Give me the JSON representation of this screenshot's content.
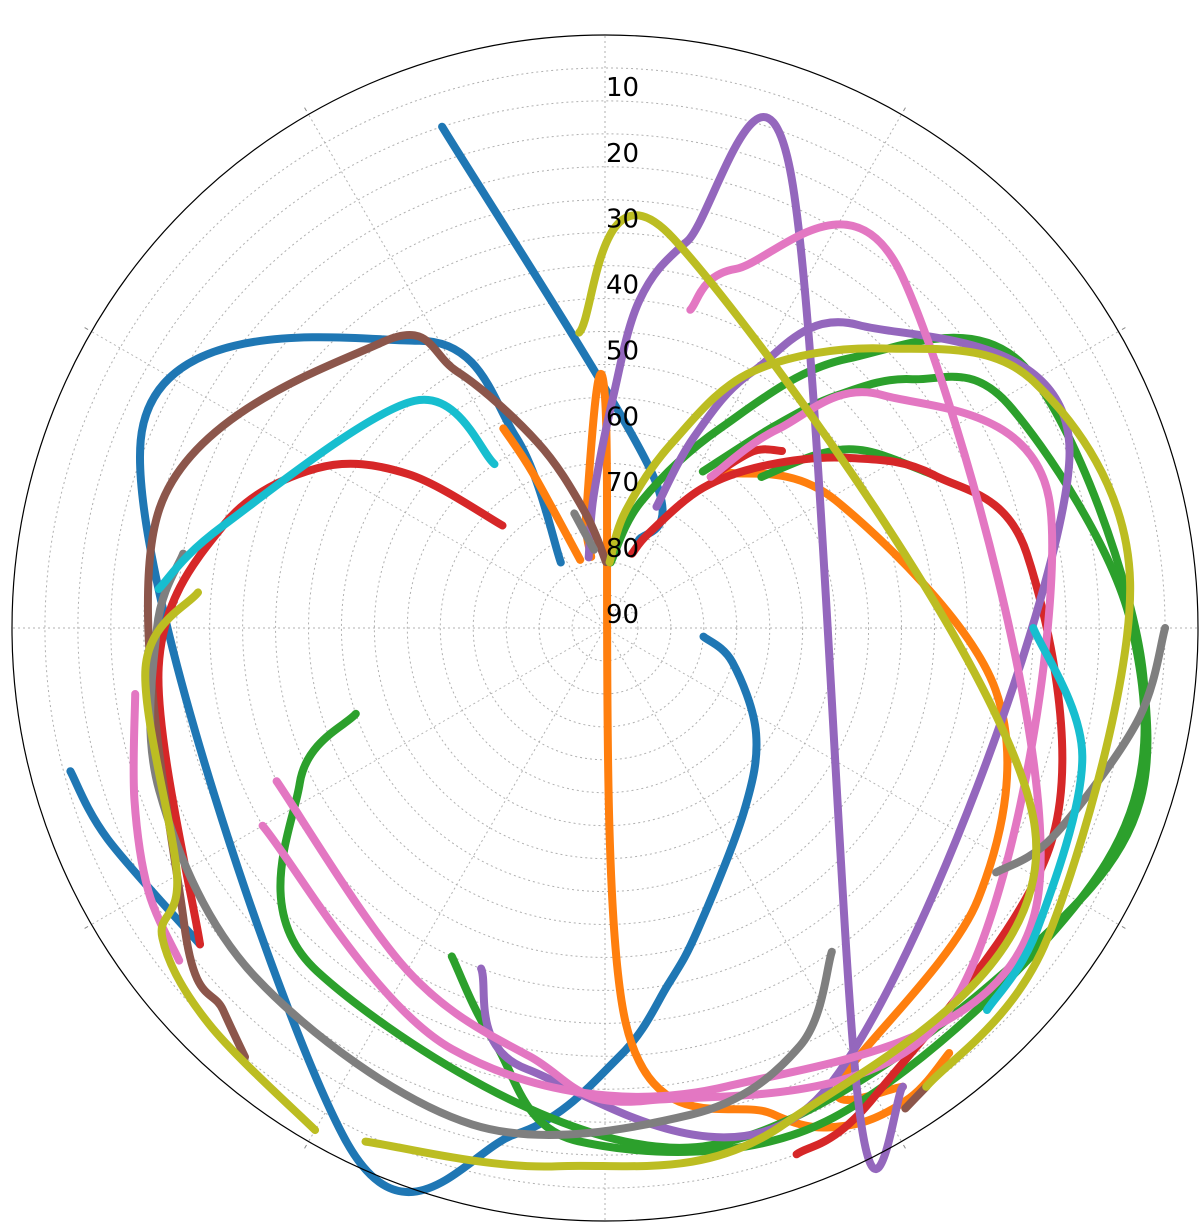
{
  "chart_data": {
    "type": "scatter",
    "projection": "polar",
    "title": "",
    "r_tick_labels": [
      "10",
      "20",
      "30",
      "40",
      "50",
      "60",
      "70",
      "80",
      "90"
    ],
    "r_range": [
      0,
      90
    ],
    "r_axis": "zenith distance = 90 - value",
    "grid": true,
    "grid_style": "dotted",
    "angular_gridlines_deg": [
      0,
      30,
      60,
      90,
      120,
      150,
      180,
      210,
      240,
      270,
      300,
      330
    ],
    "legend": "none",
    "series": [
      {
        "color": "#1f77b4",
        "points": [
          [
            10,
            342
          ],
          [
            65,
            16
          ],
          [
            76,
            21
          ]
        ]
      },
      {
        "color": "#1f77b4",
        "points": [
          [
            78,
            326
          ],
          [
            58,
            335
          ],
          [
            38,
            327
          ],
          [
            14,
            292
          ],
          [
            3,
            207
          ],
          [
            12,
            190
          ],
          [
            25,
            178
          ],
          [
            35,
            170
          ],
          [
            42,
            163
          ],
          [
            55,
            143
          ],
          [
            62,
            125
          ],
          [
            70,
            105
          ],
          [
            75,
            95
          ]
        ]
      },
      {
        "color": "#1f77b4",
        "points": [
          [
            12,
            232
          ],
          [
            8,
            247
          ],
          [
            6,
            255
          ]
        ]
      },
      {
        "color": "#ff7f0e",
        "points": [
          [
            79,
            349
          ],
          [
            72,
            351
          ],
          [
            55,
            360
          ],
          [
            30,
            177
          ],
          [
            12,
            161
          ],
          [
            6,
            154
          ],
          [
            5,
            147
          ],
          [
            7,
            141
          ]
        ]
      },
      {
        "color": "#ff7f0e",
        "points": [
          [
            79,
            340
          ],
          [
            64,
            335
          ],
          [
            56,
            333
          ]
        ]
      },
      {
        "color": "#ff7f0e",
        "points": [
          [
            60,
            38
          ],
          [
            50,
            61
          ],
          [
            30,
            99
          ],
          [
            20,
            126
          ],
          [
            12,
            153
          ],
          [
            7,
            147
          ]
        ]
      },
      {
        "color": "#2ca02c",
        "points": [
          [
            80,
            5
          ],
          [
            70,
            16
          ],
          [
            55,
            30
          ],
          [
            35,
            42
          ],
          [
            15,
            58
          ],
          [
            8,
            95
          ],
          [
            7,
            120
          ],
          [
            10,
            170
          ],
          [
            22,
            220
          ],
          [
            38,
            243
          ],
          [
            50,
            251
          ]
        ]
      },
      {
        "color": "#2ca02c",
        "points": [
          [
            62,
            32
          ],
          [
            50,
            40
          ],
          [
            40,
            45
          ],
          [
            30,
            51
          ],
          [
            20,
            61
          ],
          [
            10,
            90
          ],
          [
            6,
            115
          ],
          [
            8,
            155
          ],
          [
            12,
            183
          ],
          [
            25,
            195
          ],
          [
            35,
            205
          ]
        ]
      },
      {
        "color": "#2ca02c",
        "points": [
          [
            57,
            46
          ],
          [
            48,
            51
          ],
          [
            42,
            56
          ],
          [
            35,
            65
          ]
        ]
      },
      {
        "color": "#d62728",
        "points": [
          [
            78,
            20
          ],
          [
            74,
            25
          ],
          [
            64,
            35
          ],
          [
            55,
            45
          ],
          [
            45,
            55
          ],
          [
            35,
            65
          ],
          [
            25,
            80
          ],
          [
            15,
            115
          ],
          [
            8,
            150
          ],
          [
            5,
            160
          ]
        ]
      },
      {
        "color": "#d62728",
        "points": [
          [
            68,
            315
          ],
          [
            52,
            308
          ],
          [
            40,
            299
          ],
          [
            30,
            285
          ],
          [
            22,
            265
          ],
          [
            12,
            232
          ]
        ]
      },
      {
        "color": "#d62728",
        "points": [
          [
            62,
            35
          ],
          [
            55,
            40
          ],
          [
            52,
            45
          ]
        ]
      },
      {
        "color": "#9467bd",
        "points": [
          [
            79,
            347
          ],
          [
            70,
            355
          ],
          [
            55,
            2
          ],
          [
            40,
            6
          ],
          [
            30,
            12
          ],
          [
            15,
            22
          ],
          [
            8,
            152
          ],
          [
            7,
            147
          ]
        ]
      },
      {
        "color": "#9467bd",
        "points": [
          [
            70,
            23
          ],
          [
            58,
            25
          ],
          [
            45,
            30
          ],
          [
            30,
            40
          ],
          [
            15,
            70
          ],
          [
            12,
            155
          ],
          [
            22,
            190
          ],
          [
            35,
            200
          ]
        ]
      },
      {
        "color": "#8c564b",
        "points": [
          [
            80,
            1
          ],
          [
            72,
            350
          ],
          [
            60,
            340
          ],
          [
            45,
            330
          ],
          [
            35,
            322
          ],
          [
            20,
            285
          ],
          [
            12,
            235
          ],
          [
            8,
            225
          ],
          [
            5,
            220
          ]
        ]
      },
      {
        "color": "#8c564b",
        "points": [
          [
            5,
            145
          ],
          [
            4,
            148
          ]
        ]
      },
      {
        "color": "#e377c2",
        "points": [
          [
            62,
            35
          ],
          [
            50,
            41
          ],
          [
            35,
            50
          ],
          [
            20,
            75
          ],
          [
            12,
            138
          ],
          [
            18,
            175
          ],
          [
            24,
            190
          ],
          [
            30,
            210
          ],
          [
            35,
            245
          ]
        ]
      },
      {
        "color": "#e377c2",
        "points": [
          [
            40,
            15
          ],
          [
            32,
            20
          ],
          [
            20,
            40
          ],
          [
            12,
            123
          ],
          [
            18,
            165
          ],
          [
            22,
            200
          ],
          [
            30,
            240
          ]
        ]
      },
      {
        "color": "#e377c2",
        "points": [
          [
            18,
            262
          ],
          [
            14,
            250
          ],
          [
            10,
            240
          ],
          [
            8,
            232
          ]
        ]
      },
      {
        "color": "#7f7f7f",
        "points": [
          [
            78,
            352
          ],
          [
            72,
            345
          ]
        ]
      },
      {
        "color": "#7f7f7f",
        "points": [
          [
            25,
            280
          ],
          [
            22,
            270
          ],
          [
            18,
            250
          ],
          [
            15,
            225
          ],
          [
            12,
            195
          ],
          [
            15,
            170
          ],
          [
            20,
            155
          ],
          [
            30,
            145
          ]
        ]
      },
      {
        "color": "#7f7f7f",
        "points": [
          [
            5,
            90
          ],
          [
            8,
            100
          ],
          [
            15,
            115
          ],
          [
            20,
            122
          ]
        ]
      },
      {
        "color": "#bcbd22",
        "points": [
          [
            80,
            4
          ],
          [
            72,
            10
          ],
          [
            60,
            20
          ],
          [
            45,
            30
          ],
          [
            30,
            45
          ],
          [
            15,
            60
          ],
          [
            10,
            85
          ],
          [
            8,
            125
          ],
          [
            5,
            145
          ]
        ]
      },
      {
        "color": "#bcbd22",
        "points": [
          [
            28,
            275
          ],
          [
            20,
            265
          ],
          [
            15,
            240
          ],
          [
            8,
            235
          ],
          [
            5,
            225
          ],
          [
            2,
            210
          ]
        ]
      },
      {
        "color": "#bcbd22",
        "points": [
          [
            45,
            355
          ],
          [
            30,
            10
          ],
          [
            18,
            115
          ],
          [
            10,
            160
          ],
          [
            8,
            185
          ],
          [
            4,
            205
          ]
        ]
      },
      {
        "color": "#17becf",
        "points": [
          [
            60,
            326
          ],
          [
            45,
            320
          ],
          [
            30,
            285
          ],
          [
            22,
            275
          ]
        ]
      },
      {
        "color": "#17becf",
        "points": [
          [
            25,
            90
          ],
          [
            15,
            105
          ],
          [
            10,
            125
          ],
          [
            8,
            135
          ]
        ]
      }
    ]
  }
}
